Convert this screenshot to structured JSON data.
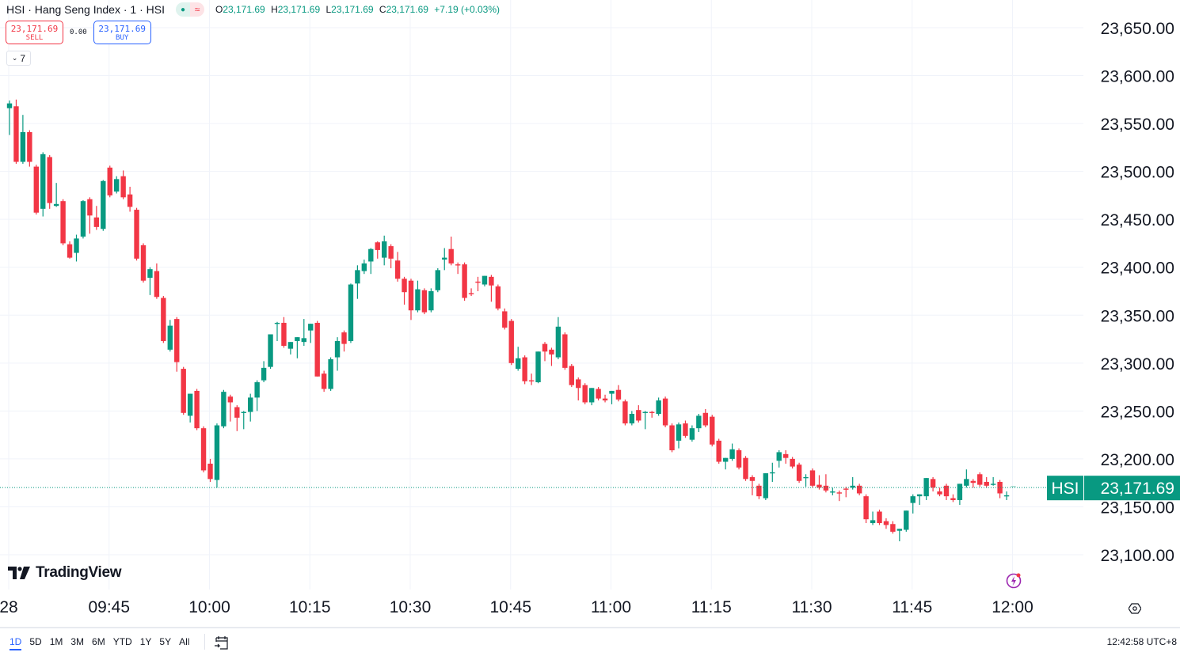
{
  "header": {
    "title": "HSI · Hang Seng Index · 1 · HSI",
    "ohlc": {
      "o_label": "O",
      "o": "23,171.69",
      "h_label": "H",
      "h": "23,171.69",
      "l_label": "L",
      "l": "23,171.69",
      "c_label": "C",
      "c": "23,171.69",
      "change": "+7.19 (+0.03%)"
    },
    "sell": {
      "price": "23,171.69",
      "label": "SELL"
    },
    "buy": {
      "price": "23,171.69",
      "label": "BUY"
    },
    "spread": "0.00",
    "indicator_count": "7",
    "icons": [
      "market-open-dot-icon",
      "approx-icon",
      "chevron-down-icon"
    ]
  },
  "logo": "TradingView",
  "footer": {
    "ranges": [
      "1D",
      "5D",
      "1M",
      "3M",
      "6M",
      "YTD",
      "1Y",
      "5Y",
      "All"
    ],
    "active_range": "1D",
    "clock": "12:42:58 UTC+8",
    "icons": [
      "go-to-date-icon",
      "lightning-icon",
      "settings-icon"
    ]
  },
  "colors": {
    "up": "#089981",
    "down": "#F23645",
    "accent": "#2962FF",
    "grid": "#F0F3FA"
  },
  "chart_data": {
    "type": "candlestick",
    "symbol": "HSI",
    "interval": "1",
    "last_price": "23,171.69",
    "last_price_value": 23171.69,
    "ylim": [
      23075,
      23670
    ],
    "y_ticks": [
      "23,100.00",
      "23,150.00",
      "23,200.00",
      "23,250.00",
      "23,300.00",
      "23,350.00",
      "23,400.00",
      "23,450.00",
      "23,500.00",
      "23,550.00",
      "23,600.00",
      "23,650.00"
    ],
    "y_tick_values": [
      23100,
      23150,
      23200,
      23250,
      23300,
      23350,
      23400,
      23450,
      23500,
      23550,
      23600,
      23650
    ],
    "x_ticks": [
      {
        "label": "28",
        "time": "09:30"
      },
      {
        "label": "09:45",
        "time": "09:45"
      },
      {
        "label": "10:00",
        "time": "10:00"
      },
      {
        "label": "10:15",
        "time": "10:15"
      },
      {
        "label": "10:30",
        "time": "10:30"
      },
      {
        "label": "10:45",
        "time": "10:45"
      },
      {
        "label": "11:00",
        "time": "11:00"
      },
      {
        "label": "11:15",
        "time": "11:15"
      },
      {
        "label": "11:30",
        "time": "11:30"
      },
      {
        "label": "11:45",
        "time": "11:45"
      },
      {
        "label": "12:00",
        "time": "12:00"
      }
    ],
    "grid": true,
    "candles_columns": [
      "time",
      "open",
      "high",
      "low",
      "close"
    ],
    "candles": [
      [
        "09:30",
        23566,
        23574,
        23538,
        23571
      ],
      [
        "09:31",
        23568,
        23575,
        23508,
        23510
      ],
      [
        "09:32",
        23510,
        23559,
        23508,
        23541
      ],
      [
        "09:33",
        23541,
        23543,
        23505,
        23510
      ],
      [
        "09:34",
        23505,
        23507,
        23455,
        23457
      ],
      [
        "09:35",
        23461,
        23520,
        23453,
        23518
      ],
      [
        "09:36",
        23515,
        23517,
        23461,
        23467
      ],
      [
        "09:37",
        23464,
        23488,
        23463,
        23466
      ],
      [
        "09:38",
        23469,
        23471,
        23423,
        23425
      ],
      [
        "09:39",
        23424,
        23427,
        23409,
        23410
      ],
      [
        "09:40",
        23415,
        23434,
        23406,
        23430
      ],
      [
        "09:41",
        23432,
        23470,
        23430,
        23469
      ],
      [
        "09:42",
        23471,
        23473,
        23435,
        23454
      ],
      [
        "09:43",
        23452,
        23464,
        23439,
        23442
      ],
      [
        "09:44",
        23440,
        23491,
        23438,
        23490
      ],
      [
        "09:45",
        23504,
        23506,
        23473,
        23475
      ],
      [
        "09:46",
        23479,
        23495,
        23477,
        23492
      ],
      [
        "09:47",
        23495,
        23501,
        23471,
        23473
      ],
      [
        "09:48",
        23476,
        23484,
        23458,
        23463
      ],
      [
        "09:49",
        23460,
        23462,
        23407,
        23409
      ],
      [
        "09:50",
        23423,
        23425,
        23384,
        23386
      ],
      [
        "09:51",
        23389,
        23400,
        23371,
        23398
      ],
      [
        "09:52",
        23396,
        23404,
        23367,
        23369
      ],
      [
        "09:53",
        23368,
        23370,
        23321,
        23323
      ],
      [
        "09:54",
        23314,
        23345,
        23312,
        23339
      ],
      [
        "09:55",
        23346,
        23348,
        23291,
        23301
      ],
      [
        "09:56",
        23294,
        23296,
        23246,
        23248
      ],
      [
        "09:57",
        23245,
        23268,
        23238,
        23268
      ],
      [
        "09:58",
        23271,
        23273,
        23230,
        23232
      ],
      [
        "09:59",
        23232,
        23234,
        23186,
        23188
      ],
      [
        "10:00",
        23195,
        23200,
        23176,
        23179
      ],
      [
        "10:01",
        23178,
        23237,
        23170,
        23235
      ],
      [
        "10:02",
        23234,
        23272,
        23232,
        23270
      ],
      [
        "10:03",
        23265,
        23267,
        23239,
        23259
      ],
      [
        "10:04",
        23254,
        23256,
        23229,
        23243
      ],
      [
        "10:05",
        23248,
        23250,
        23231,
        23249
      ],
      [
        "10:06",
        23249,
        23268,
        23239,
        23264
      ],
      [
        "10:07",
        23264,
        23282,
        23250,
        23280
      ],
      [
        "10:08",
        23282,
        23302,
        23280,
        23295
      ],
      [
        "10:09",
        23296,
        23330,
        23294,
        23330
      ],
      [
        "10:10",
        23341,
        23343,
        23323,
        23342
      ],
      [
        "10:11",
        23342,
        23348,
        23316,
        23318
      ],
      [
        "10:12",
        23315,
        23322,
        23309,
        23322
      ],
      [
        "10:13",
        23323,
        23327,
        23305,
        23327
      ],
      [
        "10:14",
        23322,
        23346,
        23318,
        23326
      ],
      [
        "10:15",
        23334,
        23341,
        23321,
        23341
      ],
      [
        "10:16",
        23342,
        23344,
        23286,
        23286
      ],
      [
        "10:17",
        23289,
        23292,
        23270,
        23273
      ],
      [
        "10:18",
        23273,
        23306,
        23271,
        23304
      ],
      [
        "10:19",
        23306,
        23327,
        23292,
        23323
      ],
      [
        "10:20",
        23332,
        23334,
        23312,
        23320
      ],
      [
        "10:21",
        23323,
        23383,
        23321,
        23382
      ],
      [
        "10:22",
        23383,
        23402,
        23367,
        23397
      ],
      [
        "10:23",
        23396,
        23408,
        23393,
        23404
      ],
      [
        "10:24",
        23406,
        23420,
        23393,
        23419
      ],
      [
        "10:25",
        23426,
        23427,
        23409,
        23418
      ],
      [
        "10:26",
        23410,
        23433,
        23402,
        23427
      ],
      [
        "10:27",
        23422,
        23424,
        23399,
        23409
      ],
      [
        "10:28",
        23407,
        23416,
        23385,
        23388
      ],
      [
        "10:29",
        23388,
        23390,
        23361,
        23374
      ],
      [
        "10:30",
        23386,
        23388,
        23345,
        23355
      ],
      [
        "10:31",
        23355,
        23386,
        23353,
        23377
      ],
      [
        "10:32",
        23376,
        23378,
        23351,
        23353
      ],
      [
        "10:33",
        23355,
        23378,
        23353,
        23375
      ],
      [
        "10:34",
        23376,
        23399,
        23374,
        23397
      ],
      [
        "10:35",
        23408,
        23420,
        23397,
        23410
      ],
      [
        "10:36",
        23419,
        23432,
        23402,
        23404
      ],
      [
        "10:37",
        23403,
        23405,
        23393,
        23402
      ],
      [
        "10:38",
        23403,
        23405,
        23365,
        23368
      ],
      [
        "10:39",
        23373,
        23378,
        23370,
        23372
      ],
      [
        "10:40",
        23385,
        23390,
        23375,
        23384
      ],
      [
        "10:41",
        23382,
        23391,
        23380,
        23391
      ],
      [
        "10:42",
        23390,
        23392,
        23364,
        23381
      ],
      [
        "10:43",
        23380,
        23382,
        23355,
        23357
      ],
      [
        "10:44",
        23354,
        23357,
        23335,
        23337
      ],
      [
        "10:45",
        23344,
        23346,
        23298,
        23300
      ],
      [
        "10:46",
        23294,
        23317,
        23292,
        23305
      ],
      [
        "10:47",
        23306,
        23308,
        23278,
        23281
      ],
      [
        "10:48",
        23282,
        23289,
        23277,
        23281
      ],
      [
        "10:49",
        23280,
        23312,
        23279,
        23312
      ],
      [
        "10:50",
        23320,
        23322,
        23302,
        23312
      ],
      [
        "10:51",
        23314,
        23316,
        23297,
        23309
      ],
      [
        "10:52",
        23306,
        23348,
        23304,
        23338
      ],
      [
        "10:53",
        23330,
        23332,
        23293,
        23295
      ],
      [
        "10:54",
        23297,
        23299,
        23275,
        23277
      ],
      [
        "10:55",
        23283,
        23285,
        23261,
        23274
      ],
      [
        "10:56",
        23277,
        23279,
        23257,
        23259
      ],
      [
        "10:57",
        23259,
        23274,
        23256,
        23274
      ],
      [
        "10:58",
        23273,
        23275,
        23261,
        23263
      ],
      [
        "10:59",
        23263,
        23267,
        23259,
        23261
      ],
      [
        "11:00",
        23268,
        23271,
        23257,
        23271
      ],
      [
        "11:01",
        23272,
        23277,
        23260,
        23262
      ],
      [
        "11:02",
        23260,
        23262,
        23235,
        23237
      ],
      [
        "11:03",
        23237,
        23250,
        23235,
        23247
      ],
      [
        "11:04",
        23251,
        23256,
        23238,
        23240
      ],
      [
        "11:05",
        23248,
        23250,
        23231,
        23249
      ],
      [
        "11:06",
        23249,
        23250,
        23243,
        23248
      ],
      [
        "11:07",
        23247,
        23264,
        23245,
        23261
      ],
      [
        "11:08",
        23263,
        23265,
        23233,
        23235
      ],
      [
        "11:09",
        23235,
        23237,
        23207,
        23209
      ],
      [
        "11:10",
        23219,
        23238,
        23211,
        23236
      ],
      [
        "11:11",
        23237,
        23240,
        23222,
        23224
      ],
      [
        "11:12",
        23220,
        23235,
        23218,
        23232
      ],
      [
        "11:13",
        23232,
        23247,
        23228,
        23245
      ],
      [
        "11:14",
        23248,
        23252,
        23233,
        23235
      ],
      [
        "11:15",
        23244,
        23246,
        23213,
        23215
      ],
      [
        "11:16",
        23219,
        23221,
        23195,
        23197
      ],
      [
        "11:17",
        23197,
        23201,
        23189,
        23201
      ],
      [
        "11:18",
        23200,
        23216,
        23198,
        23210
      ],
      [
        "11:19",
        23209,
        23211,
        23189,
        23191
      ],
      [
        "11:20",
        23201,
        23203,
        23177,
        23179
      ],
      [
        "11:21",
        23181,
        23183,
        23162,
        23177
      ],
      [
        "11:22",
        23172,
        23174,
        23158,
        23161
      ],
      [
        "11:23",
        23159,
        23185,
        23157,
        23185
      ],
      [
        "11:24",
        23186,
        23196,
        23176,
        23186
      ],
      [
        "11:25",
        23198,
        23209,
        23191,
        23207
      ],
      [
        "11:26",
        23205,
        23209,
        23195,
        23201
      ],
      [
        "11:27",
        23200,
        23202,
        23190,
        23192
      ],
      [
        "11:28",
        23194,
        23196,
        23175,
        23177
      ],
      [
        "11:29",
        23180,
        23184,
        23171,
        23181
      ],
      [
        "11:30",
        23188,
        23190,
        23170,
        23172
      ],
      [
        "11:31",
        23173,
        23183,
        23168,
        23170
      ],
      [
        "11:32",
        23172,
        23184,
        23165,
        23167
      ],
      [
        "11:33",
        23166,
        23170,
        23162,
        23166
      ],
      [
        "11:34",
        23165,
        23167,
        23156,
        23164
      ],
      [
        "11:35",
        23169,
        23171,
        23160,
        23168
      ],
      [
        "11:36",
        23170,
        23181,
        23168,
        23172
      ],
      [
        "11:37",
        23172,
        23174,
        23162,
        23164
      ],
      [
        "11:38",
        23161,
        23163,
        23133,
        23137
      ],
      [
        "11:39",
        23133,
        23145,
        23131,
        23136
      ],
      [
        "11:40",
        23145,
        23147,
        23131,
        23133
      ],
      [
        "11:41",
        23135,
        23138,
        23127,
        23131
      ],
      [
        "11:42",
        23132,
        23135,
        23122,
        23124
      ],
      [
        "11:43",
        23125,
        23127,
        23114,
        23127
      ],
      [
        "11:44",
        23126,
        23146,
        23124,
        23146
      ],
      [
        "11:45",
        23154,
        23163,
        23143,
        23161
      ],
      [
        "11:46",
        23161,
        23163,
        23152,
        23163
      ],
      [
        "11:47",
        23161,
        23180,
        23157,
        23180
      ],
      [
        "11:48",
        23179,
        23181,
        23166,
        23170
      ],
      [
        "11:49",
        23166,
        23170,
        23161,
        23163
      ],
      [
        "11:50",
        23172,
        23174,
        23157,
        23161
      ],
      [
        "11:51",
        23159,
        23163,
        23155,
        23157
      ],
      [
        "11:52",
        23157,
        23174,
        23152,
        23174
      ],
      [
        "11:53",
        23172,
        23189,
        23170,
        23179
      ],
      [
        "11:54",
        23177,
        23179,
        23170,
        23175
      ],
      [
        "11:55",
        23184,
        23186,
        23171,
        23173
      ],
      [
        "11:56",
        23176,
        23181,
        23170,
        23172
      ],
      [
        "11:57",
        23174,
        23181,
        23172,
        23174
      ],
      [
        "11:58",
        23176,
        23178,
        23159,
        23164
      ],
      [
        "11:59",
        23162,
        23166,
        23157,
        23162
      ],
      [
        "12:00",
        23171.69,
        23171.69,
        23171.69,
        23171.69
      ]
    ]
  }
}
